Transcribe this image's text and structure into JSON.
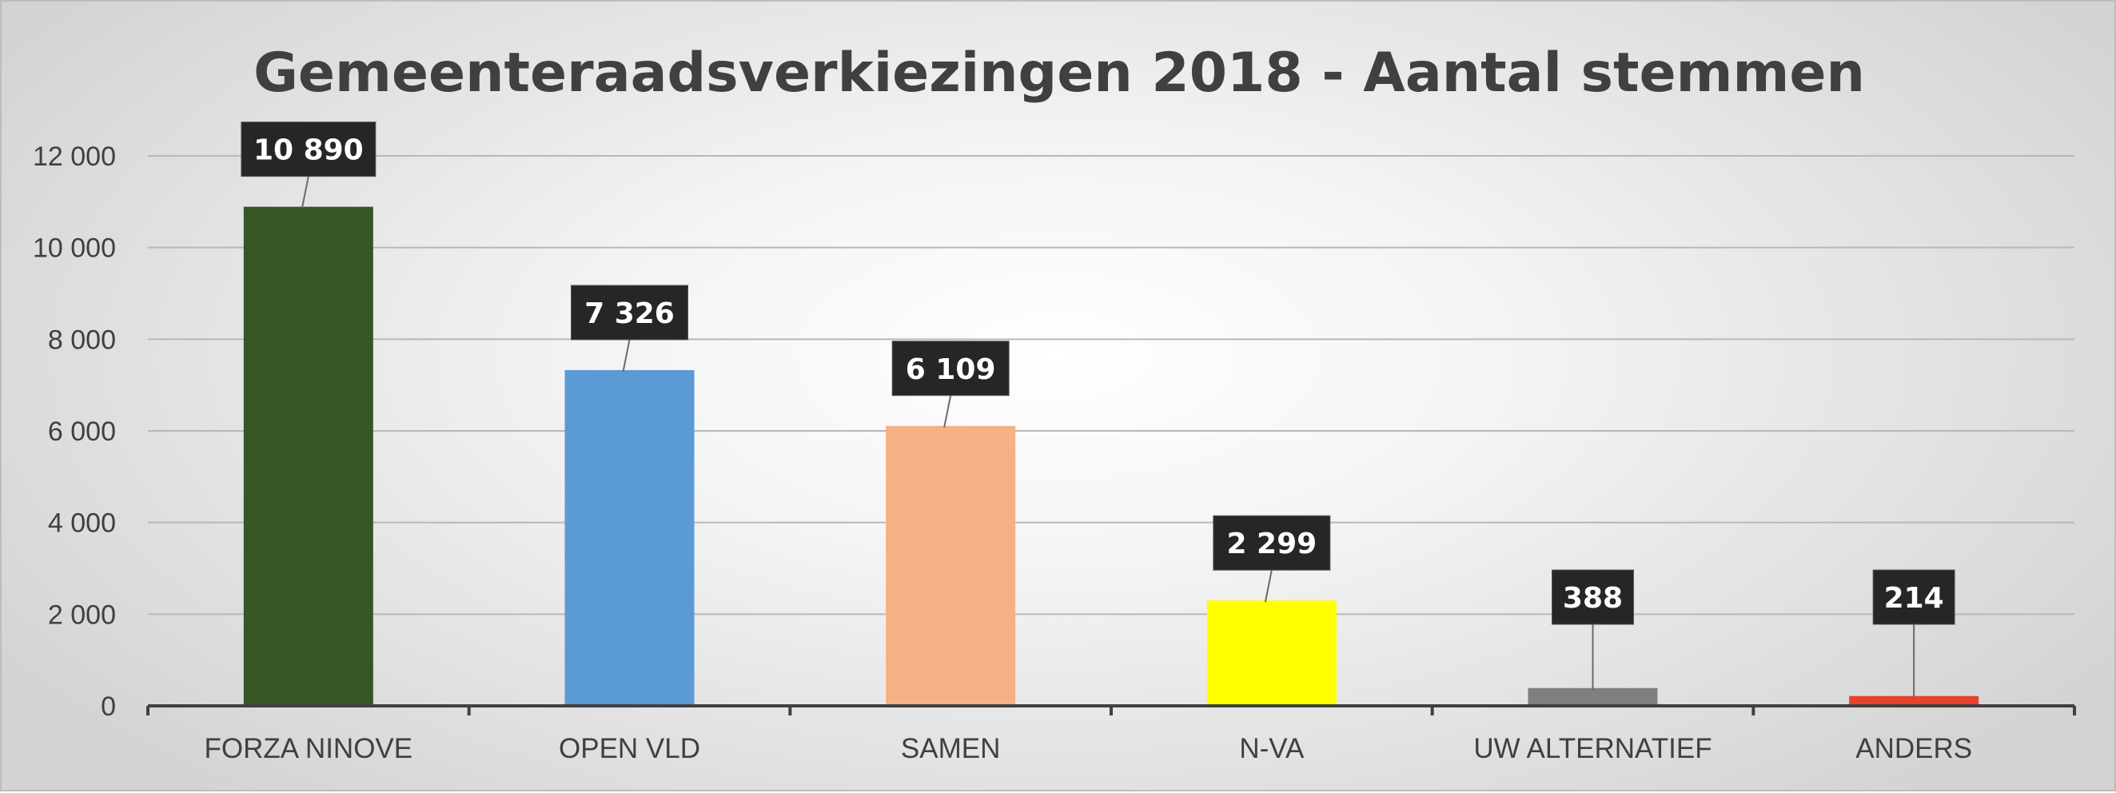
{
  "chart_data": {
    "type": "bar",
    "title": "Gemeenteraadsverkiezingen 2018 - Aantal stemmen",
    "xlabel": "",
    "ylabel": "",
    "ylim": [
      0,
      12000
    ],
    "yticks": [
      0,
      2000,
      4000,
      6000,
      8000,
      10000,
      12000
    ],
    "ytick_labels": [
      "0",
      "2 000",
      "4 000",
      "6 000",
      "8 000",
      "10 000",
      "12 000"
    ],
    "grid": true,
    "legend": "none",
    "categories": [
      "FORZA NINOVE",
      "OPEN VLD",
      "SAMEN",
      "N-VA",
      "UW ALTERNATIEF",
      "ANDERS"
    ],
    "values": [
      10890,
      7326,
      6109,
      2299,
      388,
      214
    ],
    "data_labels": [
      "10 890",
      "7 326",
      "6 109",
      "2 299",
      "388",
      "214"
    ],
    "colors": [
      "#375623",
      "#5b9bd5",
      "#f4b183",
      "#ffff00",
      "#7f7f7f",
      "#e8412c"
    ]
  }
}
